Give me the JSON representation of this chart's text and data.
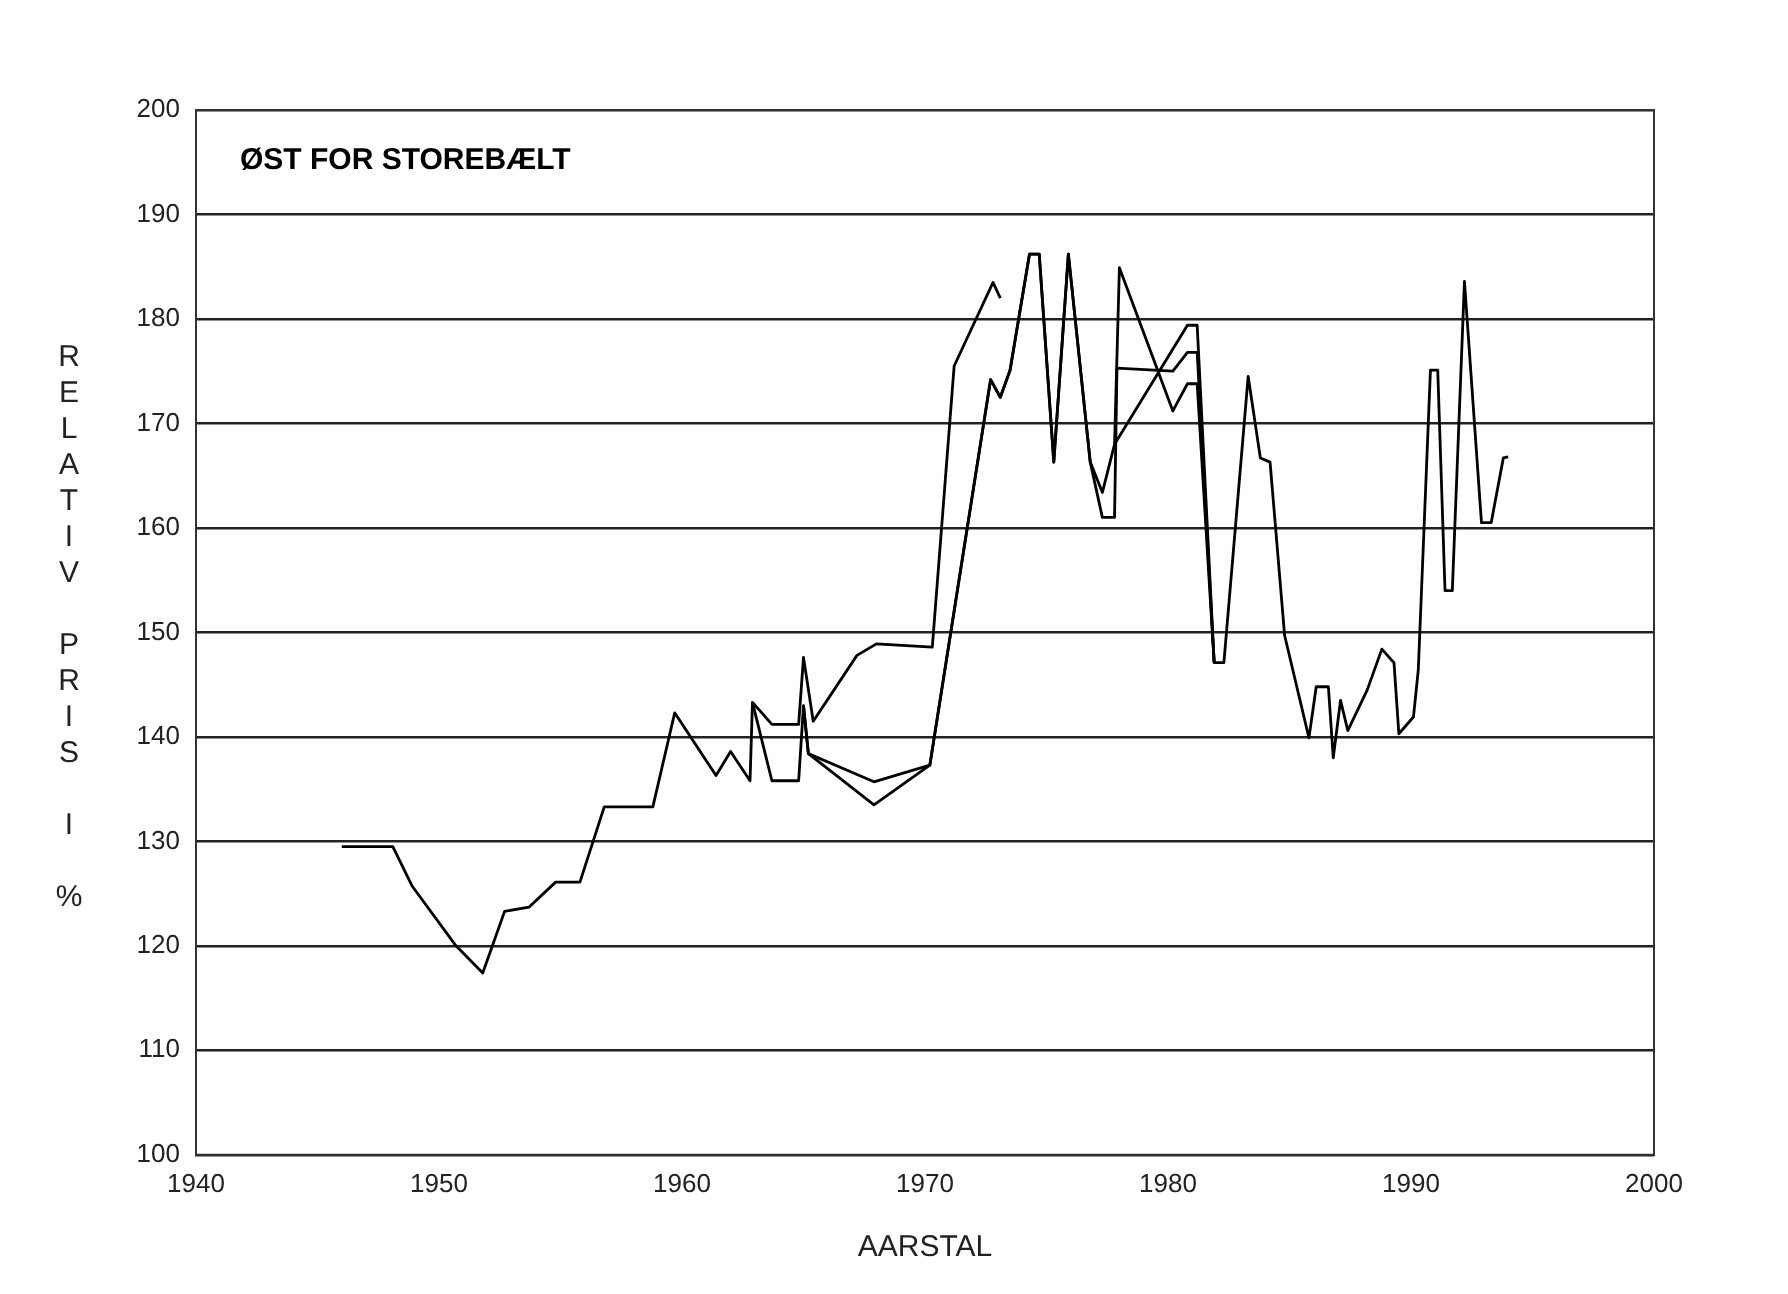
{
  "chart_data": {
    "type": "line",
    "title": "ØST FOR STOREBÆLT",
    "xlabel": "AARSTAL",
    "ylabel": "RELATIV PRIS I %",
    "xlim": [
      1940,
      2000
    ],
    "xticks": [
      1940,
      1950,
      1960,
      1970,
      1980,
      1990,
      2000
    ],
    "ylim": [
      100,
      200
    ],
    "yticks": [
      100,
      110,
      120,
      130,
      140,
      150,
      160,
      170,
      180,
      190,
      200
    ],
    "grid": "y",
    "legend": false,
    "marker": "none",
    "line_style": "solid",
    "series": [
      {
        "color": "#000000",
        "x": [
          1946,
          1948.1,
          1948.9,
          1950.7,
          1951.8,
          1952.7,
          1953.7,
          1954.8,
          1955.8,
          1956.8,
          1958.8,
          1959.7,
          1961.4,
          1962,
          1962.8,
          1962.9,
          1963.7,
          1964.8,
          1965,
          1965.4,
          1967.2,
          1968,
          1970.3,
          1971.2,
          1972.8,
          1973.1
        ],
        "values": [
          129.5,
          129.5,
          125.7,
          120,
          117.4,
          123.3,
          123.7,
          126.1,
          126.1,
          133.3,
          133.3,
          142.3,
          136.3,
          138.6,
          135.8,
          143.3,
          141.2,
          141.2,
          147.6,
          141.5,
          147.8,
          148.9,
          148.6,
          175.5,
          183.5,
          182
        ]
      },
      {
        "color": "#000000",
        "x": [
          1962.9,
          1963.7,
          1964.8,
          1965,
          1965.2,
          1967.9,
          1970.2,
          1972.7,
          1973.1,
          1973.5,
          1974.3,
          1974.7,
          1975.3,
          1975.9,
          1976.8,
          1977.3,
          1977.8,
          1977.9,
          1980.2,
          1980.8,
          1981.2,
          1981.9,
          1982.3,
          1983.3,
          1983.8,
          1984.2,
          1984.8,
          1985.8,
          1986.1,
          1986.6,
          1986.8,
          1987.1,
          1987.4,
          1988.2,
          1988.8,
          1989.3,
          1989.5,
          1990.1,
          1990.3,
          1990.8,
          1991.1,
          1991.4,
          1991.7,
          1992.2,
          1992.9,
          1993.3,
          1993.8,
          1994
        ],
        "values": [
          143.3,
          135.8,
          135.8,
          143,
          138.4,
          135.7,
          137.3,
          174.2,
          172.5,
          175.1,
          186.2,
          186.2,
          166.3,
          186.2,
          166.3,
          161,
          161,
          175.3,
          175,
          176.8,
          176.8,
          147.1,
          147.1,
          174.5,
          166.7,
          166.3,
          149.7,
          139.9,
          144.8,
          144.8,
          138,
          143.5,
          140.6,
          144.5,
          148.4,
          147.1,
          140.3,
          141.9,
          146.4,
          175.1,
          175.1,
          154,
          154,
          183.6,
          160.5,
          160.5,
          166.7,
          166.8
        ]
      },
      {
        "color": "#000000",
        "x": [
          1965,
          1965.2,
          1967.9,
          1970.2,
          1972.7,
          1973.1,
          1973.5,
          1974.3,
          1974.7,
          1975.3,
          1975.9,
          1976.8,
          1977.3,
          1977.8,
          1978,
          1980.2,
          1980.8,
          1981.2,
          1981.9
        ],
        "values": [
          143,
          138.4,
          133.5,
          137.3,
          174.2,
          172.5,
          175.1,
          186.2,
          186.2,
          166.3,
          186.2,
          166.3,
          163.4,
          168,
          184.9,
          171.2,
          173.8,
          173.8,
          147.1
        ]
      },
      {
        "color": "#000000",
        "x": [
          1977.8,
          1980.8,
          1981.2,
          1981.9
        ],
        "values": [
          168,
          179.4,
          179.4,
          147.1
        ]
      }
    ]
  }
}
